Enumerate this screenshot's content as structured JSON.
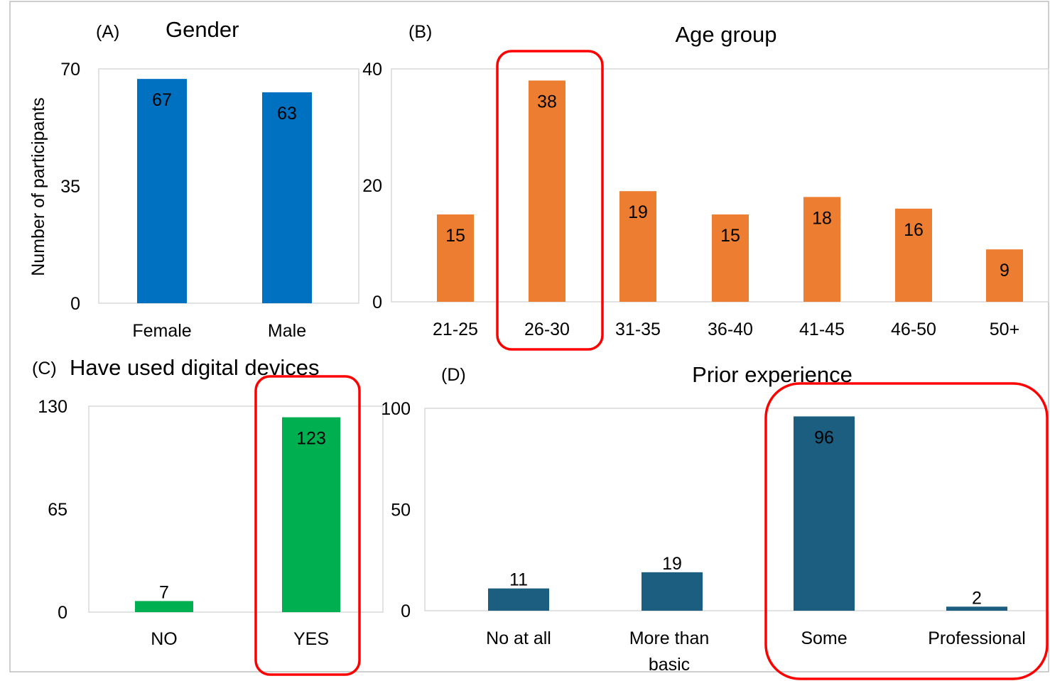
{
  "chart_data": [
    {
      "panel": "(A)",
      "type": "bar",
      "title": "Gender",
      "ylabel": "Number of participants",
      "xlabel": "",
      "categories": [
        "Female",
        "Male"
      ],
      "values": [
        67,
        63
      ],
      "ylim": [
        0,
        70
      ],
      "yticks": [
        0,
        35,
        70
      ],
      "color": "#0070C0",
      "highlighted": [],
      "grid": false
    },
    {
      "panel": "(B)",
      "type": "bar",
      "title": "Age group",
      "ylabel": "",
      "xlabel": "",
      "categories": [
        "21-25",
        "26-30",
        "31-35",
        "36-40",
        "41-45",
        "46-50",
        "50+"
      ],
      "values": [
        15,
        38,
        19,
        15,
        18,
        16,
        9
      ],
      "ylim": [
        0,
        40
      ],
      "yticks": [
        0,
        20,
        40
      ],
      "color": "#ED7D31",
      "highlighted": [
        "26-30"
      ],
      "grid": false
    },
    {
      "panel": "(C)",
      "type": "bar",
      "title": "Have used digital devices",
      "ylabel": "",
      "xlabel": "",
      "categories": [
        "NO",
        "YES"
      ],
      "values": [
        7,
        123
      ],
      "ylim": [
        0,
        130
      ],
      "yticks": [
        0,
        65,
        130
      ],
      "color": "#00B050",
      "highlighted": [
        "YES"
      ],
      "grid": false
    },
    {
      "panel": "(D)",
      "type": "bar",
      "title": "Prior experience",
      "ylabel": "",
      "xlabel": "",
      "categories": [
        "No at all",
        "More than basic",
        "Some",
        "Professional"
      ],
      "values": [
        11,
        19,
        96,
        2
      ],
      "ylim": [
        0,
        100
      ],
      "yticks": [
        0,
        50,
        100
      ],
      "color": "#1B5E80",
      "highlighted": [
        "Some",
        "Professional"
      ],
      "grid": false
    }
  ],
  "colors": {
    "highlight_outline": "#FF0000",
    "panel_frame": "#D9D9D9",
    "outer_frame": "#BFBFBF"
  }
}
